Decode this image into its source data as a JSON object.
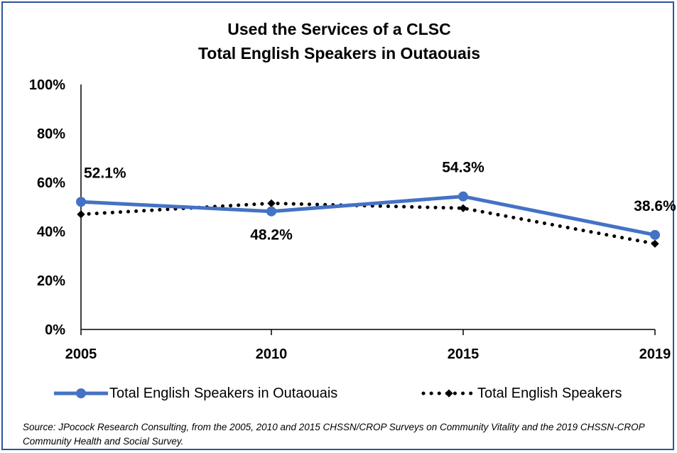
{
  "chart_data": {
    "type": "line",
    "title_lines": [
      "Used the Services of a CLSC",
      "Total English Speakers in Outaouais"
    ],
    "categories": [
      "2005",
      "2010",
      "2015",
      "2019"
    ],
    "y_ticks": [
      "0%",
      "20%",
      "40%",
      "60%",
      "80%",
      "100%"
    ],
    "ylim": [
      0,
      100
    ],
    "xlabel": "",
    "ylabel": "",
    "grid": false,
    "legend_position": "bottom",
    "series": [
      {
        "name": "Total English Speakers in Outaouais",
        "values": [
          52.1,
          48.2,
          54.3,
          38.6
        ],
        "data_labels": [
          "52.1%",
          "48.2%",
          "54.3%",
          "38.6%"
        ],
        "color": "#4472c4",
        "style": "solid-circle-markers"
      },
      {
        "name": "Total English Speakers",
        "values": [
          47,
          51.5,
          49.5,
          35
        ],
        "color": "#000000",
        "style": "dotted-diamond-markers"
      }
    ],
    "source": "Source: JPocock Research Consulting, from the 2005, 2010  and 2015  CHSSN/CROP Surveys on Community Vitality and the 2019  CHSSN-CROP Community Health and Social Survey."
  }
}
